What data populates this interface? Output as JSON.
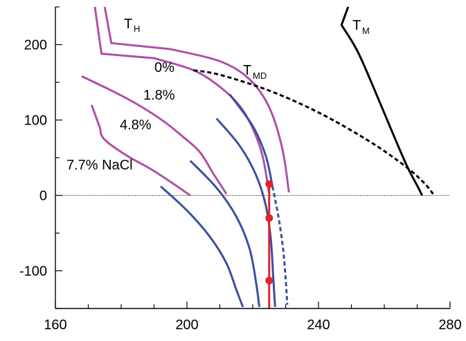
{
  "chart_data": {
    "type": "line",
    "title": "",
    "xlabel": "",
    "ylabel": "",
    "xlim": [
      160,
      280
    ],
    "ylim": [
      -150,
      250
    ],
    "x_ticks": [
      160,
      200,
      240,
      280
    ],
    "y_ticks": [
      -100,
      0,
      100,
      200
    ],
    "grid": false,
    "annotations": {
      "th": "T",
      "th_sub": "H",
      "tm": "T",
      "tm_sub": "M",
      "tmd": "T",
      "tmd_sub": "MD",
      "c0": "0%",
      "c18": "1.8%",
      "c48": "4.8%",
      "c77": "7.7% NaCl"
    },
    "series": [
      {
        "color": "#b04fa8",
        "style": "solid",
        "x": [
          171,
          173.5,
          174,
          176,
          182,
          189,
          195,
          201
        ],
        "y": [
          120,
          90,
          80,
          70,
          52,
          35,
          18,
          0
        ]
      },
      {
        "color": "#b04fa8",
        "style": "solid",
        "x": [
          168,
          178,
          186,
          193,
          199,
          204,
          208,
          212
        ],
        "y": [
          158,
          137,
          118,
          98,
          77,
          57,
          29,
          2
        ]
      },
      {
        "color": "#b04fa8",
        "style": "solid",
        "x": [
          172,
          174,
          190,
          202,
          210,
          216,
          220,
          223,
          225
        ],
        "y": [
          250,
          188,
          182,
          166,
          144,
          119,
          89,
          52,
          2
        ]
      },
      {
        "color": "#b04fa8",
        "style": "solid",
        "x": [
          175,
          177,
          195,
          210,
          219,
          225,
          229,
          231
        ],
        "y": [
          250,
          202,
          194,
          178,
          154,
          117,
          62,
          4
        ]
      },
      {
        "color": "#3a4fa0",
        "style": "solid",
        "x": [
          192,
          200,
          207,
          212,
          215,
          217
        ],
        "y": [
          12,
          -20,
          -55,
          -90,
          -125,
          -148
        ]
      },
      {
        "color": "#3a4fa0",
        "style": "solid",
        "x": [
          201,
          209,
          215,
          219,
          221,
          222
        ],
        "y": [
          46,
          10,
          -28,
          -70,
          -115,
          -148
        ]
      },
      {
        "color": "#3a4fa0",
        "style": "solid",
        "x": [
          209,
          216,
          221,
          224,
          225.5,
          226.2,
          226.8
        ],
        "y": [
          102,
          66,
          27,
          -14,
          -58,
          -106,
          -148
        ]
      },
      {
        "color": "#3a4fa0",
        "style": "solid",
        "x": [
          213,
          220,
          224,
          226
        ],
        "y": [
          134,
          92,
          52,
          12
        ]
      },
      {
        "color": "#3a4fa0",
        "style": "dashed",
        "x": [
          226,
          227.8,
          229.2,
          230,
          230.5
        ],
        "y": [
          12,
          -28,
          -70,
          -110,
          -145
        ]
      },
      {
        "color": "#000000",
        "style": "dashed",
        "x": [
          202,
          210,
          225,
          240,
          255,
          266,
          272,
          275
        ],
        "y": [
          166,
          160,
          139,
          110,
          73,
          40,
          17,
          1
        ]
      },
      {
        "color": "#000000",
        "style": "solid",
        "x": [
          249,
          247,
          252,
          258,
          263,
          267,
          270,
          271.5
        ],
        "y": [
          250,
          226,
          190,
          130,
          78,
          38,
          13,
          0
        ]
      },
      {
        "color": "#e3222b",
        "style": "solid",
        "x": [
          225,
          225
        ],
        "y": [
          15,
          -150
        ]
      }
    ],
    "points": [
      {
        "x": 225,
        "y": 15,
        "color": "#e3222b"
      },
      {
        "x": 225,
        "y": -30,
        "color": "#e3222b"
      },
      {
        "x": 225,
        "y": -113,
        "color": "#e3222b"
      }
    ]
  }
}
